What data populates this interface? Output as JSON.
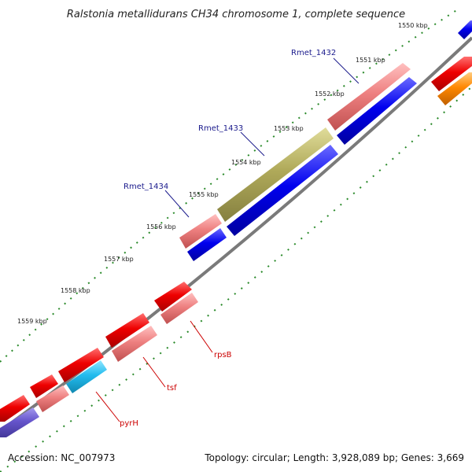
{
  "title": "Ralstonia metallidurans CH34 chromosome 1, complete sequence",
  "footer": {
    "accession": "Accession: NC_007973",
    "summary": "Topology: circular; Length: 3,928,089 bp; Genes: 3,669"
  },
  "ticks": [
    "1550 kbp",
    "1551 kbp",
    "1552 kbp",
    "1553 kbp",
    "1554 kbp",
    "1555 kbp",
    "1556 kbp",
    "1557 kbp",
    "1558 kbp",
    "1559 kbp"
  ],
  "gene_labels": [
    {
      "text": "Rmet_1432",
      "color": "#1a1a8c"
    },
    {
      "text": "Rmet_1433",
      "color": "#1a1a8c"
    },
    {
      "text": "Rmet_1434",
      "color": "#1a1a8c"
    },
    {
      "text": "rpsB",
      "color": "#cc0000"
    },
    {
      "text": "tsf",
      "color": "#cc0000"
    },
    {
      "text": "pyrH",
      "color": "#cc0000"
    }
  ],
  "colors": {
    "backbone": "#7a7a7a",
    "tick_marks": "#2a8a2a",
    "cds_red": "#ee0000",
    "cds_pink": "#ee8080",
    "cds_blue": "#0000ee",
    "cds_olive": "#b0aa5a",
    "cds_cyan": "#22bbee",
    "cds_slate": "#6655cc",
    "cds_orange": "#ff8800"
  }
}
